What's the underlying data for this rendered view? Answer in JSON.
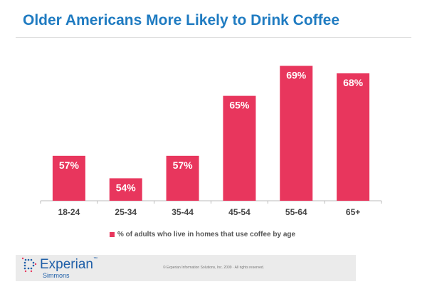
{
  "chart_data": {
    "type": "bar",
    "title": "Older Americans More Likely to Drink Coffee",
    "categories": [
      "18-24",
      "25-34",
      "35-44",
      "45-54",
      "55-64",
      "65+"
    ],
    "series": [
      {
        "name": "% of adults who live in homes that use coffee by age",
        "values": [
          57,
          54,
          57,
          65,
          69,
          68
        ]
      }
    ],
    "data_labels": [
      "57%",
      "54%",
      "57%",
      "65%",
      "69%",
      "68%"
    ],
    "ylim": [
      51,
      70
    ],
    "grid": false,
    "legend": "bottom",
    "bar_color": "#e8365d"
  },
  "footer": {
    "logo": "Experian",
    "logo_tm": "™",
    "sub": "Simmons",
    "copyright": "© Experian Information Solutions, Inc. 2009 · All rights reserved."
  }
}
